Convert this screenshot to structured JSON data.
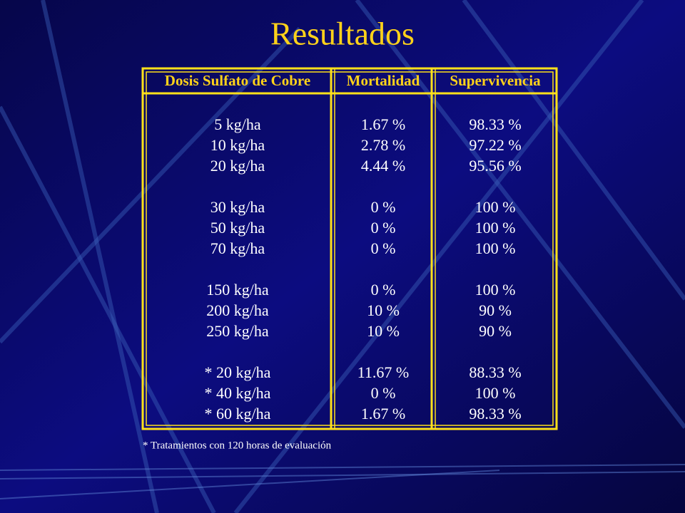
{
  "header": {
    "title": "Resultados"
  },
  "table": {
    "columns": [
      "Dosis Sulfato de Cobre",
      "Mortalidad",
      "Supervivencia"
    ],
    "groups": [
      [
        [
          "5 kg/ha",
          "1.67 %",
          "98.33 %"
        ],
        [
          "10 kg/ha",
          "2.78 %",
          "97.22 %"
        ],
        [
          "20 kg/ha",
          "4.44 %",
          "95.56 %"
        ]
      ],
      [
        [
          "30 kg/ha",
          "0 %",
          "100 %"
        ],
        [
          "50 kg/ha",
          "0 %",
          "100 %"
        ],
        [
          "70 kg/ha",
          "0 %",
          "100 %"
        ]
      ],
      [
        [
          "150 kg/ha",
          "0 %",
          "100 %"
        ],
        [
          "200 kg/ha",
          "10 %",
          "90 %"
        ],
        [
          "250 kg/ha",
          "10 %",
          "90 %"
        ]
      ],
      [
        [
          "* 20 kg/ha",
          "11.67 %",
          "88.33 %"
        ],
        [
          "* 40 kg/ha",
          "0 %",
          "100 %"
        ],
        [
          "* 60 kg/ha",
          "1.67 %",
          "98.33 %"
        ]
      ]
    ]
  },
  "footnote": "* Tratamientos con 120 horas de evaluación"
}
